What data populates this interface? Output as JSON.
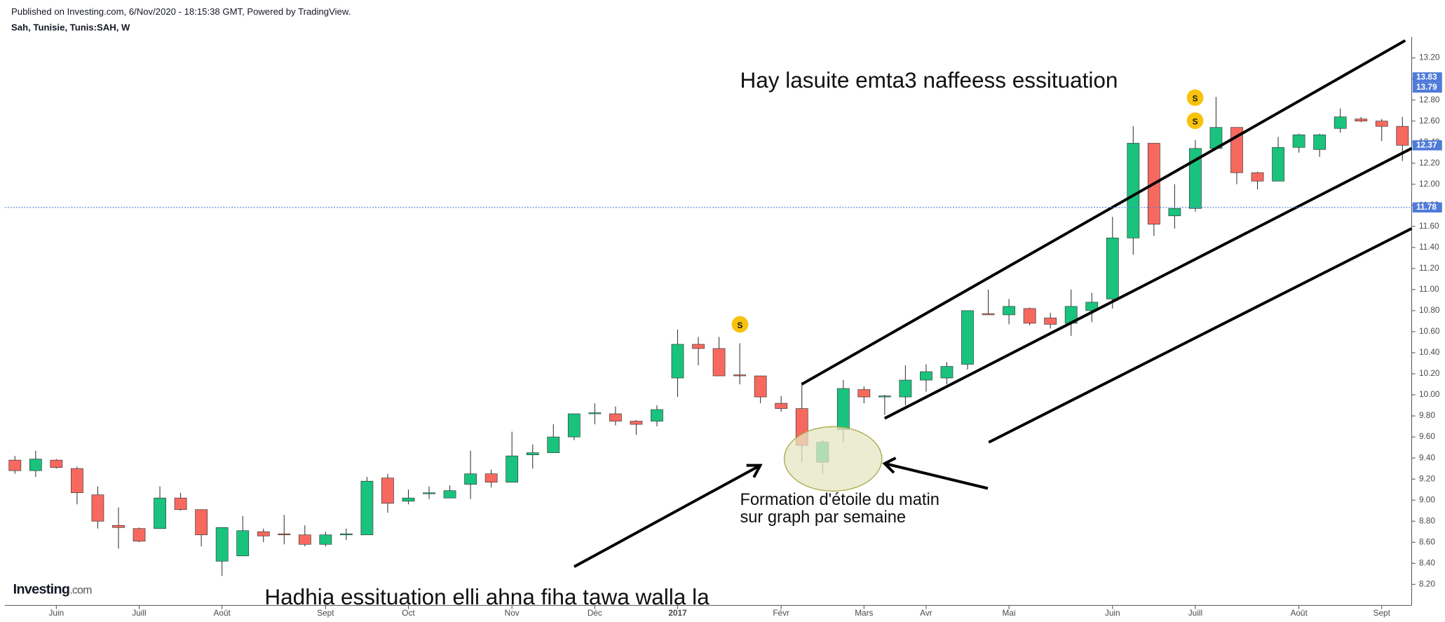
{
  "header": {
    "published": "Published on Investing.com, 6/Nov/2020 - 18:15:38 GMT, Powered by TradingView.",
    "symbol": "Sah, Tunisie, Tunis:SAH, W"
  },
  "logo": {
    "brand": "Investing",
    "suffix": ".com"
  },
  "annotations": {
    "top": "Hay lasuite emta3 naffeess essituation",
    "pattern_line1": "Formation d'étoile du matin",
    "pattern_line2": "sur graph par semaine",
    "bottom": "Hadhia essituation elli ahna fiha tawa walla la",
    "dividend_symbol": "S"
  },
  "chart_data": {
    "type": "candlestick",
    "categories": [
      null,
      null,
      "Juin",
      null,
      null,
      null,
      "Juill",
      null,
      null,
      null,
      "Août",
      null,
      null,
      null,
      null,
      "Sept",
      null,
      null,
      null,
      "Oct",
      null,
      null,
      null,
      null,
      "Nov",
      null,
      null,
      null,
      "Déc",
      null,
      null,
      null,
      "2017",
      null,
      null,
      null,
      null,
      "Févr",
      null,
      null,
      null,
      "Mars",
      null,
      null,
      "Avr",
      null,
      null,
      null,
      "Mai",
      null,
      null,
      null,
      null,
      "Juin",
      null,
      null,
      null,
      "Juill",
      null,
      null,
      null,
      null,
      "Août",
      null,
      null,
      null,
      "Sept",
      null
    ],
    "bold_categories": [
      "2017"
    ],
    "up_color": "#19c37d",
    "down_color": "#f7695f",
    "open": [
      9.38,
      9.28,
      9.38,
      9.3,
      9.05,
      8.76,
      8.73,
      8.73,
      9.02,
      8.91,
      8.42,
      8.47,
      8.7,
      8.68,
      8.67,
      8.58,
      8.67,
      8.67,
      9.21,
      8.99,
      9.06,
      9.02,
      9.15,
      9.25,
      9.17,
      9.43,
      9.45,
      9.6,
      9.82,
      9.82,
      9.75,
      9.75,
      10.16,
      10.48,
      10.44,
      10.19,
      10.18,
      9.92,
      9.87,
      9.36,
      9.67,
      10.05,
      9.98,
      9.98,
      10.14,
      10.16,
      10.29,
      10.77,
      10.76,
      10.82,
      10.73,
      10.68,
      10.8,
      10.91,
      11.49,
      12.39,
      11.7,
      11.77,
      12.34,
      12.54,
      12.11,
      12.03,
      12.35,
      12.33,
      12.53,
      12.62,
      12.6,
      12.55
    ],
    "high": [
      9.42,
      9.47,
      9.39,
      9.32,
      9.13,
      8.93,
      8.74,
      9.13,
      9.07,
      8.91,
      8.74,
      8.85,
      8.73,
      8.86,
      8.76,
      8.7,
      8.73,
      9.22,
      9.25,
      9.1,
      9.13,
      9.14,
      9.47,
      9.29,
      9.65,
      9.53,
      9.72,
      9.82,
      9.92,
      9.89,
      9.76,
      9.9,
      10.62,
      10.55,
      10.55,
      10.49,
      10.18,
      9.99,
      10.12,
      9.57,
      10.14,
      10.08,
      10.0,
      10.28,
      10.29,
      10.31,
      10.8,
      11.0,
      10.91,
      10.83,
      10.78,
      11.0,
      10.97,
      11.69,
      12.55,
      12.39,
      12.0,
      12.42,
      12.83,
      12.54,
      12.12,
      12.45,
      12.48,
      12.48,
      12.72,
      12.64,
      12.62,
      12.64
    ],
    "low": [
      9.25,
      9.22,
      9.3,
      8.96,
      8.73,
      8.54,
      8.6,
      8.73,
      8.9,
      8.56,
      8.28,
      8.47,
      8.6,
      8.58,
      8.56,
      8.56,
      8.62,
      8.67,
      8.88,
      8.96,
      9.01,
      9.02,
      9.01,
      9.12,
      9.17,
      9.3,
      9.45,
      9.57,
      9.72,
      9.71,
      9.62,
      9.7,
      9.98,
      10.28,
      10.18,
      10.1,
      9.92,
      9.84,
      9.36,
      9.25,
      9.55,
      9.92,
      9.81,
      9.9,
      10.03,
      10.1,
      10.24,
      10.76,
      10.67,
      10.66,
      10.63,
      10.56,
      10.69,
      10.82,
      11.33,
      11.51,
      11.58,
      11.74,
      12.34,
      12.0,
      11.95,
      12.03,
      12.3,
      12.26,
      12.49,
      12.59,
      12.41,
      12.22
    ],
    "close": [
      9.28,
      9.39,
      9.31,
      9.07,
      8.8,
      8.74,
      8.61,
      9.02,
      8.91,
      8.67,
      8.74,
      8.71,
      8.66,
      8.67,
      8.58,
      8.67,
      8.68,
      9.18,
      8.97,
      9.02,
      9.07,
      9.09,
      9.25,
      9.17,
      9.42,
      9.45,
      9.6,
      9.82,
      9.83,
      9.75,
      9.72,
      9.86,
      10.48,
      10.44,
      10.18,
      10.18,
      9.98,
      9.87,
      9.52,
      9.55,
      10.06,
      9.98,
      9.99,
      10.14,
      10.22,
      10.27,
      10.8,
      10.76,
      10.84,
      10.68,
      10.67,
      10.84,
      10.88,
      11.49,
      12.39,
      11.62,
      11.77,
      12.34,
      12.54,
      12.11,
      12.03,
      12.35,
      12.47,
      12.47,
      12.64,
      12.6,
      12.55,
      12.37
    ],
    "ylim": [
      8.0,
      13.4
    ],
    "yticks": [
      {
        "value": 8.2,
        "label": "8.20"
      },
      {
        "value": 8.4,
        "label": "8.40"
      },
      {
        "value": 8.6,
        "label": "8.60"
      },
      {
        "value": 8.8,
        "label": "8.80"
      },
      {
        "value": 9.0,
        "label": "9.00"
      },
      {
        "value": 9.2,
        "label": "9.20"
      },
      {
        "value": 9.4,
        "label": "9.40"
      },
      {
        "value": 9.6,
        "label": "9.60"
      },
      {
        "value": 9.8,
        "label": "9.80"
      },
      {
        "value": 10.0,
        "label": "10.00"
      },
      {
        "value": 10.2,
        "label": "10.20"
      },
      {
        "value": 10.4,
        "label": "10.40"
      },
      {
        "value": 10.6,
        "label": "10.60"
      },
      {
        "value": 10.8,
        "label": "10.80"
      },
      {
        "value": 11.0,
        "label": "11.00"
      },
      {
        "value": 11.2,
        "label": "11.20"
      },
      {
        "value": 11.4,
        "label": "11.40"
      },
      {
        "value": 11.6,
        "label": "11.60"
      },
      {
        "value": 11.8,
        "label": "11.80"
      },
      {
        "value": 12.0,
        "label": "12.00"
      },
      {
        "value": 12.2,
        "label": "12.20"
      },
      {
        "value": 12.4,
        "label": "12.40"
      },
      {
        "value": 12.6,
        "label": "12.60"
      },
      {
        "value": 12.8,
        "label": "12.80"
      },
      {
        "value": 13.0,
        "label": "13.00"
      },
      {
        "value": 13.2,
        "label": "13.20"
      }
    ],
    "price_lines": [
      {
        "value": 12.37,
        "label": "12.37",
        "dotted": false
      },
      {
        "value": 11.78,
        "label": "11.78",
        "dotted": true
      }
    ],
    "offscale_labels": [
      "13.83",
      "13.79"
    ],
    "badge_color": "#4f7bd8"
  }
}
